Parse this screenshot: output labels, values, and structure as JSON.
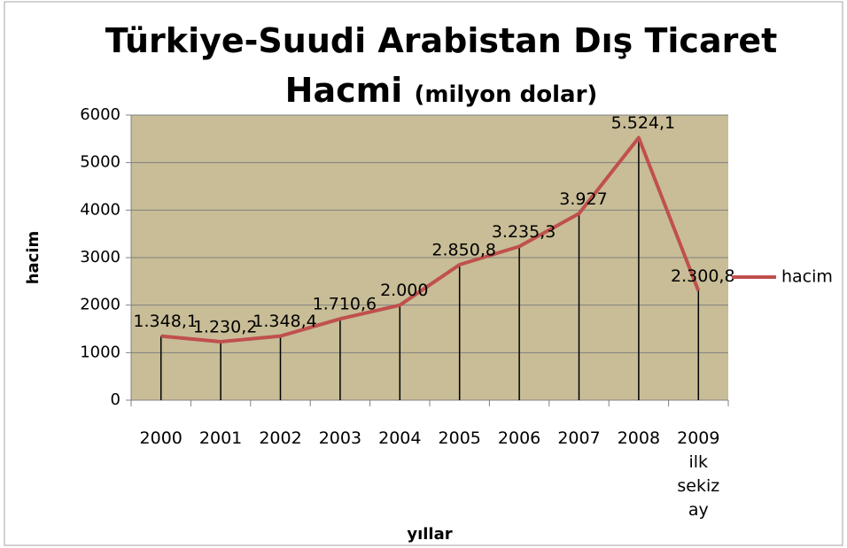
{
  "chart_data": {
    "type": "line",
    "title": "Türkiye-Suudi Arabistan Dış Ticaret Hacmi",
    "subtitle": "(milyon dolar)",
    "x_label": "yıllar",
    "y_label": "hacim",
    "categories": [
      "2000",
      "2001",
      "2002",
      "2003",
      "2004",
      "2005",
      "2006",
      "2007",
      "2008",
      "2009 ilk sekiz ay"
    ],
    "series": [
      {
        "name": "hacim",
        "color": "#c0504d",
        "values": [
          1348.1,
          1230.2,
          1348.4,
          1710.6,
          2000,
          2850.8,
          3235.3,
          3927,
          5524.1,
          2300.8
        ],
        "value_labels": [
          "1.348,1",
          "1.230,2",
          "1.348,4",
          "1.710,6",
          "2.000",
          "2.850,8",
          "3.235,3",
          "3.927",
          "5.524,1",
          "2.300,8"
        ]
      }
    ],
    "ylim": [
      0,
      6000
    ],
    "yticks": [
      0,
      1000,
      2000,
      3000,
      4000,
      5000,
      6000
    ],
    "grid": true,
    "drop_lines": true,
    "legend": "right",
    "plot_background": "#c8bd96"
  }
}
